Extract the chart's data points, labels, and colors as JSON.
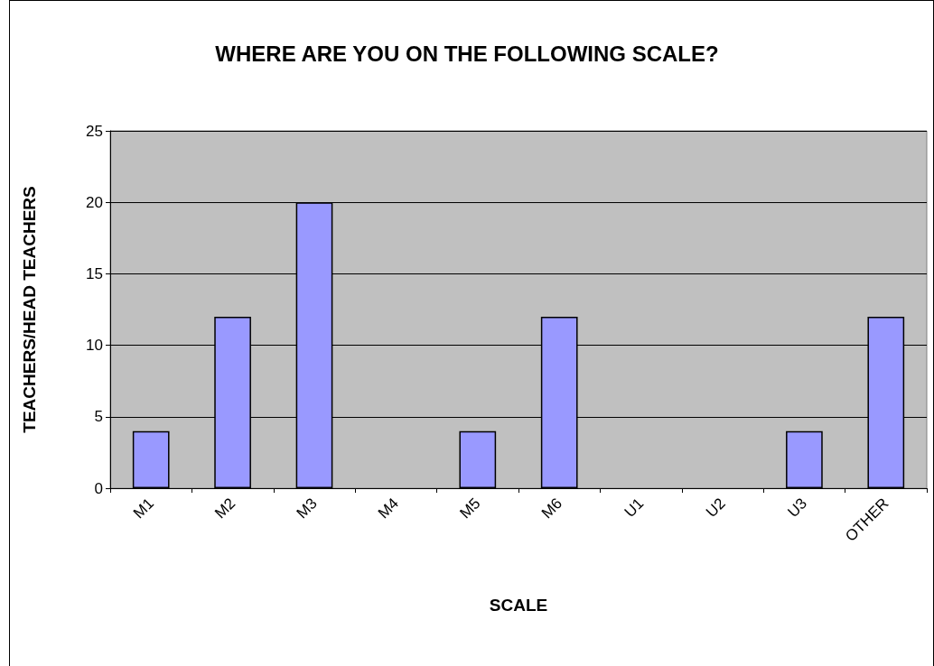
{
  "chart_data": {
    "type": "bar",
    "title": "WHERE ARE YOU ON THE FOLLOWING SCALE?",
    "xlabel": "SCALE",
    "ylabel": "TEACHERS/HEAD TEACHERS",
    "categories": [
      "M1",
      "M2",
      "M3",
      "M4",
      "M5",
      "M6",
      "U1",
      "U2",
      "U3",
      "OTHER"
    ],
    "values": [
      4,
      12,
      20,
      0,
      4,
      12,
      0,
      0,
      4,
      12
    ],
    "color": "#9999ff",
    "ylim": [
      0,
      25
    ],
    "yticks": [
      0,
      5,
      10,
      15,
      20,
      25
    ],
    "grid": "y"
  }
}
